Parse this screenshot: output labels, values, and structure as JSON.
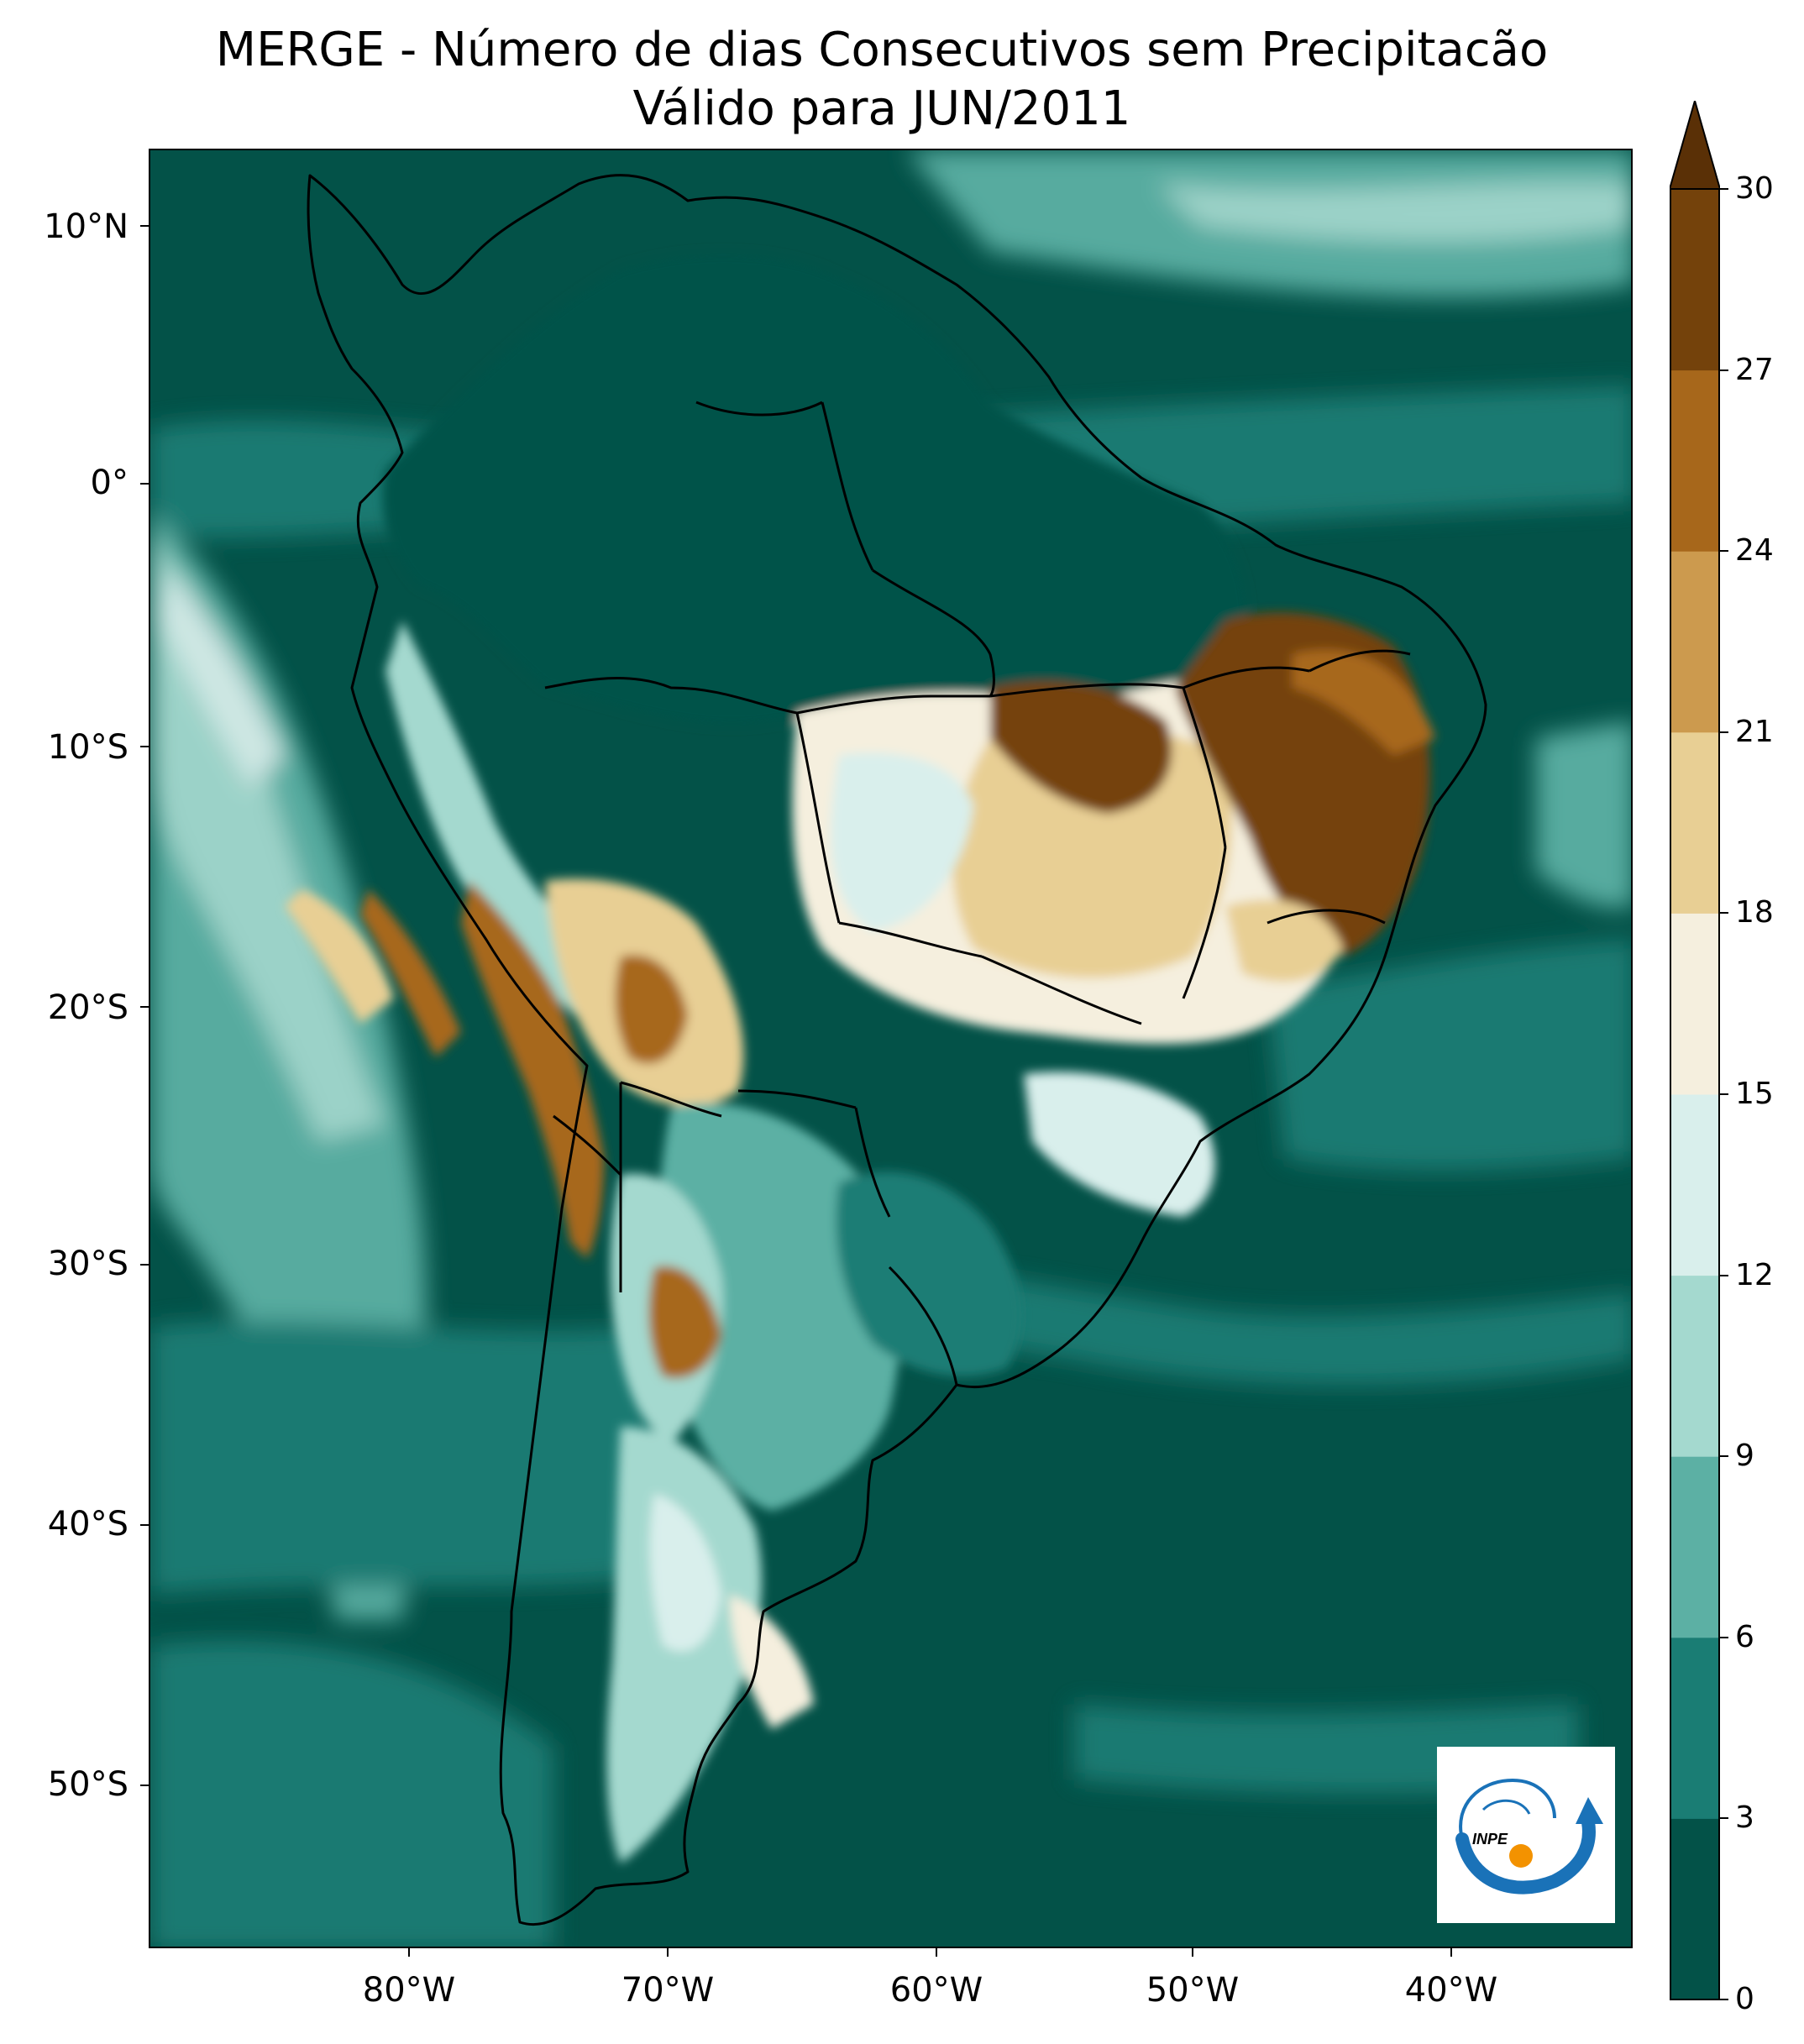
{
  "title": {
    "line1": "MERGE - Número de dias Consecutivos sem Precipitacão",
    "line2": "Válido para JUN/2011"
  },
  "map": {
    "latitude_labels": [
      "10°N",
      "0°",
      "10°S",
      "20°S",
      "30°S",
      "40°S",
      "50°S"
    ],
    "longitude_labels": [
      "80°W",
      "70°W",
      "60°W",
      "50°W",
      "40°W"
    ],
    "extent": {
      "lon_min": -89.5,
      "lon_max": -31.5,
      "lat_min": -57.0,
      "lat_max": 13.0
    }
  },
  "colorbar": {
    "ticks": [
      "0",
      "3",
      "6",
      "9",
      "12",
      "15",
      "18",
      "21",
      "24",
      "27",
      "30"
    ],
    "colors": [
      "#035248",
      "#1a7d74",
      "#5cb0a4",
      "#a4d9cf",
      "#d9efec",
      "#f5efde",
      "#e8cf94",
      "#cc9a4e",
      "#a7671b",
      "#74420b"
    ],
    "extend": "max",
    "extend_color": "#5a3006"
  },
  "logo": {
    "text": "INPE",
    "colors": {
      "blue": "#1a72b8",
      "orange": "#f39200"
    }
  }
}
